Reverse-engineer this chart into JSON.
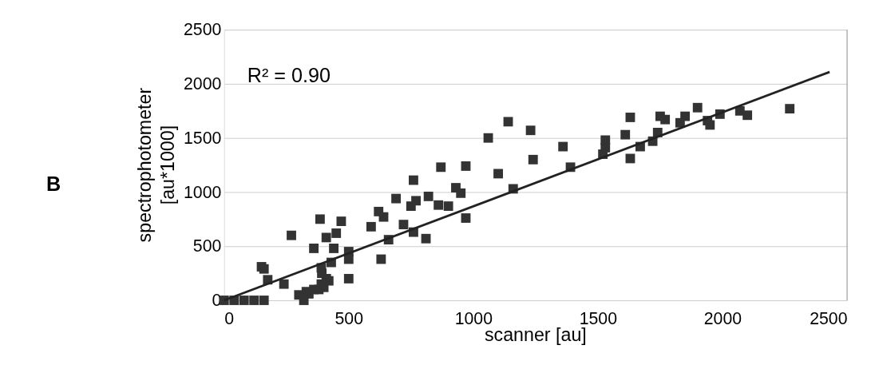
{
  "chart_data": {
    "type": "scatter",
    "xlabel": "scanner [au]",
    "ylabel": "spectrophotometer [au*1000]",
    "annotations": [
      "B",
      "R² = 0.90"
    ],
    "xlim": [
      0,
      2500
    ],
    "ylim": [
      0,
      2500
    ],
    "xticks": [
      0,
      500,
      1000,
      1500,
      2000,
      2500
    ],
    "yticks": [
      0,
      500,
      1000,
      1500,
      2000,
      2500
    ],
    "grid": "y",
    "marker": "square",
    "series": [
      {
        "color": "#333333",
        "x": [
          0,
          40,
          80,
          120,
          160,
          150,
          160,
          175,
          240,
          270,
          300,
          320,
          330,
          340,
          360,
          380,
          390,
          400,
          410,
          420,
          360,
          385,
          390,
          392,
          410,
          430,
          440,
          450,
          470,
          500,
          500,
          500,
          590,
          620,
          630,
          640,
          660,
          690,
          720,
          750,
          760,
          760,
          770,
          810,
          820,
          860,
          870,
          900,
          930,
          950,
          970,
          970,
          1060,
          1100,
          1140,
          1160,
          1230,
          1240,
          1360,
          1390,
          1520,
          1530,
          1530,
          1610,
          1630,
          1630,
          1670,
          1720,
          1740,
          1750,
          1770,
          1830,
          1850,
          1900,
          1940,
          1950,
          1990,
          2070,
          2100,
          2270
        ],
        "values": [
          0,
          0,
          0,
          0,
          0,
          310,
          290,
          190,
          150,
          600,
          50,
          0,
          80,
          60,
          100,
          100,
          150,
          120,
          200,
          180,
          480,
          750,
          300,
          250,
          580,
          350,
          480,
          620,
          730,
          450,
          380,
          200,
          680,
          820,
          380,
          770,
          560,
          940,
          700,
          870,
          630,
          1110,
          920,
          570,
          960,
          880,
          1230,
          870,
          1040,
          990,
          760,
          1240,
          1500,
          1170,
          1650,
          1030,
          1570,
          1300,
          1420,
          1230,
          1350,
          1410,
          1480,
          1530,
          1310,
          1690,
          1420,
          1470,
          1550,
          1700,
          1670,
          1640,
          1700,
          1780,
          1660,
          1620,
          1720,
          1750,
          1710,
          1770
        ]
      },
      {
        "type": "line",
        "color": "#222222",
        "marker": "none",
        "x": [
          0,
          2430
        ],
        "values": [
          0,
          2110
        ]
      }
    ]
  }
}
